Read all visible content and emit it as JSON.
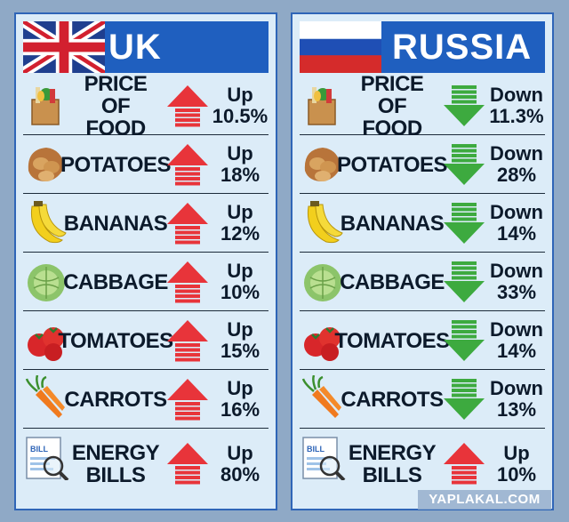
{
  "uk": {
    "title": "UK",
    "rows": [
      {
        "label": "PRICE\nOF FOOD",
        "direction": "Up",
        "value": "10.5%",
        "icon": "grocery-bag-icon"
      },
      {
        "label": "POTATOES",
        "direction": "Up",
        "value": "18%",
        "icon": "potatoes-icon"
      },
      {
        "label": "BANANAS",
        "direction": "Up",
        "value": "12%",
        "icon": "bananas-icon"
      },
      {
        "label": "CABBAGE",
        "direction": "Up",
        "value": "10%",
        "icon": "cabbage-icon"
      },
      {
        "label": "TOMATOES",
        "direction": "Up",
        "value": "15%",
        "icon": "tomatoes-icon"
      },
      {
        "label": "CARROTS",
        "direction": "Up",
        "value": "16%",
        "icon": "carrots-icon"
      },
      {
        "label": "ENERGY\nBILLS",
        "direction": "Up",
        "value": "80%",
        "icon": "bill-magnifier-icon"
      }
    ]
  },
  "russia": {
    "title": "RUSSIA",
    "rows": [
      {
        "label": "PRICE\nOF FOOD",
        "direction": "Down",
        "value": "11.3%",
        "icon": "grocery-bag-icon"
      },
      {
        "label": "POTATOES",
        "direction": "Down",
        "value": "28%",
        "icon": "potatoes-icon"
      },
      {
        "label": "BANANAS",
        "direction": "Down",
        "value": "14%",
        "icon": "bananas-icon"
      },
      {
        "label": "CABBAGE",
        "direction": "Down",
        "value": "33%",
        "icon": "cabbage-icon"
      },
      {
        "label": "TOMATOES",
        "direction": "Down",
        "value": "14%",
        "icon": "tomatoes-icon"
      },
      {
        "label": "CARROTS",
        "direction": "Down",
        "value": "13%",
        "icon": "carrots-icon"
      },
      {
        "label": "ENERGY\nBILLS",
        "direction": "Up",
        "value": "10%",
        "icon": "bill-magnifier-icon"
      }
    ]
  },
  "bill_text": "BILL",
  "watermark": "YAPLAKAL.COM",
  "colors": {
    "up": "#e8343a",
    "down": "#3daa3f",
    "panel": "#dcecf8",
    "header": "#1f5fbf",
    "frame": "#2f65b7"
  }
}
